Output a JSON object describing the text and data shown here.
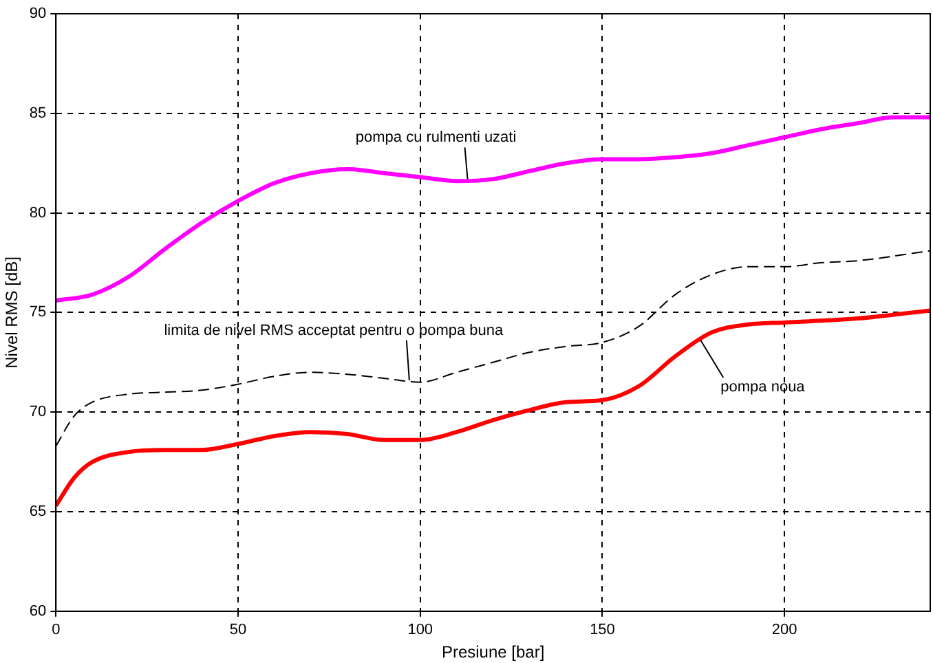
{
  "chart_data": {
    "type": "line",
    "xlabel": "Presiune [bar]",
    "ylabel": "Nivel RMS [dB]",
    "xlim": [
      0,
      240
    ],
    "ylim": [
      60,
      90
    ],
    "xticks": [
      0,
      50,
      100,
      150,
      200
    ],
    "yticks": [
      60,
      65,
      70,
      75,
      80,
      85,
      90
    ],
    "grid": true,
    "legend": false,
    "marker": "none",
    "series": [
      {
        "color": "#ff00ff",
        "line_style": "solid",
        "x": [
          0,
          10,
          20,
          30,
          40,
          50,
          60,
          70,
          80,
          90,
          100,
          110,
          120,
          130,
          140,
          150,
          160,
          170,
          180,
          190,
          200,
          210,
          220,
          230,
          240
        ],
        "values": [
          75.6,
          75.9,
          76.8,
          78.2,
          79.5,
          80.6,
          81.5,
          82.0,
          82.2,
          82.0,
          81.8,
          81.6,
          81.7,
          82.1,
          82.5,
          82.7,
          82.7,
          82.8,
          83.0,
          83.4,
          83.8,
          84.2,
          84.5,
          84.8,
          84.8
        ]
      },
      {
        "color": "#000000",
        "line_style": "dashed",
        "x": [
          0,
          5,
          10,
          20,
          30,
          40,
          50,
          60,
          70,
          80,
          90,
          100,
          110,
          120,
          130,
          140,
          150,
          160,
          170,
          180,
          190,
          200,
          210,
          220,
          240
        ],
        "values": [
          68.3,
          69.8,
          70.5,
          70.9,
          71.0,
          71.1,
          71.4,
          71.8,
          72.0,
          71.9,
          71.7,
          71.5,
          72.0,
          72.5,
          73.0,
          73.3,
          73.5,
          74.3,
          75.9,
          76.9,
          77.3,
          77.3,
          77.5,
          77.6,
          78.1
        ]
      },
      {
        "color": "#ff0000",
        "line_style": "solid",
        "x": [
          0,
          5,
          10,
          20,
          30,
          40,
          50,
          60,
          70,
          80,
          90,
          100,
          110,
          120,
          130,
          140,
          150,
          160,
          170,
          180,
          190,
          200,
          220,
          240
        ],
        "values": [
          65.3,
          66.7,
          67.5,
          68.0,
          68.1,
          68.1,
          68.4,
          68.8,
          69.0,
          68.9,
          68.6,
          68.6,
          69.0,
          69.6,
          70.1,
          70.5,
          70.6,
          71.3,
          72.8,
          74.0,
          74.4,
          74.5,
          74.7,
          75.1
        ]
      }
    ],
    "annotations": [
      {
        "text": "pompa cu rulmenti uzati",
        "x": 113,
        "y": 81.7
      },
      {
        "text": "limita de nivel RMS acceptat pentru o pompa buna",
        "x": 97,
        "y": 71.6
      },
      {
        "text": "pompa noua",
        "x": 177,
        "y": 73.6
      }
    ]
  }
}
